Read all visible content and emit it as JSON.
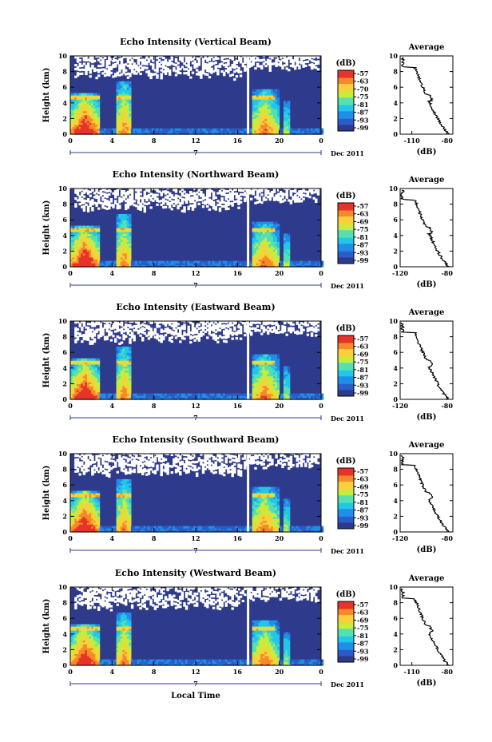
{
  "chart_data": [
    {
      "type": "heatmap",
      "title": "Echo Intensity (Vertical Beam)",
      "xlabel": "",
      "ylabel": "Height (km)",
      "xlim": [
        0,
        24
      ],
      "ylim": [
        0,
        10
      ],
      "x_ticks": [
        "0",
        "4",
        "8",
        "12",
        "16",
        "20",
        "0"
      ],
      "y_ticks": [
        "0",
        "2",
        "4",
        "6",
        "8",
        "10"
      ],
      "date_row": {
        "day": "7",
        "month_year": "Dec 2011"
      },
      "colorbar": {
        "unit": "(dB)",
        "ticks": [
          "-57",
          "-63",
          "-70",
          "-75",
          "-81",
          "-87",
          "-93",
          "-99"
        ],
        "range": [
          -99,
          -57
        ]
      },
      "average": {
        "title": "Average",
        "xlabel": "(dB)",
        "x_ticks": [
          "-110",
          "-80"
        ],
        "xlim": [
          -120,
          -75
        ],
        "ylim": [
          0,
          10
        ],
        "y_ticks": [
          "0",
          "2",
          "4",
          "6",
          "8",
          "10"
        ]
      }
    },
    {
      "type": "heatmap",
      "title": "Echo Intensity (Northward Beam)",
      "xlabel": "",
      "ylabel": "Height (km)",
      "xlim": [
        0,
        24
      ],
      "ylim": [
        0,
        10
      ],
      "x_ticks": [
        "0",
        "4",
        "8",
        "12",
        "16",
        "20",
        "0"
      ],
      "y_ticks": [
        "0",
        "2",
        "4",
        "6",
        "8",
        "10"
      ],
      "date_row": {
        "day": "7",
        "month_year": "Dec 2011"
      },
      "colorbar": {
        "unit": "(dB)",
        "ticks": [
          "-57",
          "-63",
          "-69",
          "-75",
          "-81",
          "-87",
          "-93",
          "-99"
        ],
        "range": [
          -99,
          -57
        ]
      },
      "average": {
        "title": "Average",
        "xlabel": "(dB)",
        "x_ticks": [
          "-120",
          "-80"
        ],
        "xlim": [
          -120,
          -75
        ],
        "ylim": [
          0,
          10
        ],
        "y_ticks": [
          "0",
          "2",
          "4",
          "6",
          "8",
          "10"
        ]
      }
    },
    {
      "type": "heatmap",
      "title": "Echo Intensity (Eastward Beam)",
      "xlabel": "",
      "ylabel": "Height (km)",
      "xlim": [
        0,
        24
      ],
      "ylim": [
        0,
        10
      ],
      "x_ticks": [
        "0",
        "4",
        "8",
        "12",
        "16",
        "20",
        "0"
      ],
      "y_ticks": [
        "0",
        "2",
        "4",
        "6",
        "8",
        "10"
      ],
      "date_row": {
        "day": "7",
        "month_year": "Dec 2011"
      },
      "colorbar": {
        "unit": "(dB)",
        "ticks": [
          "-57",
          "-63",
          "-69",
          "-75",
          "-81",
          "-87",
          "-93",
          "-99"
        ],
        "range": [
          -99,
          -57
        ]
      },
      "average": {
        "title": "Average",
        "xlabel": "(dB)",
        "x_ticks": [
          "-120",
          "-80"
        ],
        "xlim": [
          -120,
          -75
        ],
        "ylim": [
          0,
          10
        ],
        "y_ticks": [
          "0",
          "2",
          "4",
          "6",
          "8",
          "10"
        ]
      }
    },
    {
      "type": "heatmap",
      "title": "Echo Intensity (Southward Beam)",
      "xlabel": "",
      "ylabel": "Height (km)",
      "xlim": [
        0,
        24
      ],
      "ylim": [
        0,
        10
      ],
      "x_ticks": [
        "0",
        "4",
        "8",
        "12",
        "16",
        "20",
        "0"
      ],
      "y_ticks": [
        "0",
        "2",
        "4",
        "6",
        "8",
        "10"
      ],
      "date_row": {
        "day": "7",
        "month_year": "Dec 2011"
      },
      "colorbar": {
        "unit": "(dB)",
        "ticks": [
          "-57",
          "-63",
          "-69",
          "-75",
          "-81",
          "-87",
          "-93",
          "-99"
        ],
        "range": [
          -99,
          -57
        ]
      },
      "average": {
        "title": "Average",
        "xlabel": "(dB)",
        "x_ticks": [
          "-120",
          "-80"
        ],
        "xlim": [
          -120,
          -75
        ],
        "ylim": [
          0,
          10
        ],
        "y_ticks": [
          "0",
          "2",
          "4",
          "6",
          "8",
          "10"
        ]
      }
    },
    {
      "type": "heatmap",
      "title": "Echo Intensity (Westward Beam)",
      "xlabel": "Local Time",
      "ylabel": "Height (km)",
      "xlim": [
        0,
        24
      ],
      "ylim": [
        0,
        10
      ],
      "x_ticks": [
        "0",
        "4",
        "8",
        "12",
        "16",
        "20",
        "0"
      ],
      "y_ticks": [
        "0",
        "2",
        "4",
        "6",
        "8",
        "10"
      ],
      "date_row": {
        "day": "7",
        "month_year": "Dec 2011"
      },
      "colorbar": {
        "unit": "(dB)",
        "ticks": [
          "-57",
          "-63",
          "-69",
          "-75",
          "-81",
          "-87",
          "-93",
          "-99"
        ],
        "range": [
          -99,
          -57
        ]
      },
      "average": {
        "title": "Average",
        "xlabel": "(dB)",
        "x_ticks": [
          "-110",
          "-80"
        ],
        "xlim": [
          -120,
          -75
        ],
        "ylim": [
          0,
          10
        ],
        "y_ticks": [
          "0",
          "2",
          "4",
          "6",
          "8",
          "10"
        ]
      }
    }
  ],
  "colors": {
    "background_fill": "#2e3a8c",
    "colormap": [
      "#2e3a8c",
      "#2b5cc7",
      "#1f8ee8",
      "#22c6e8",
      "#55e0b0",
      "#c8ec3c",
      "#f8d03a",
      "#f58a2a",
      "#e8332a"
    ]
  }
}
